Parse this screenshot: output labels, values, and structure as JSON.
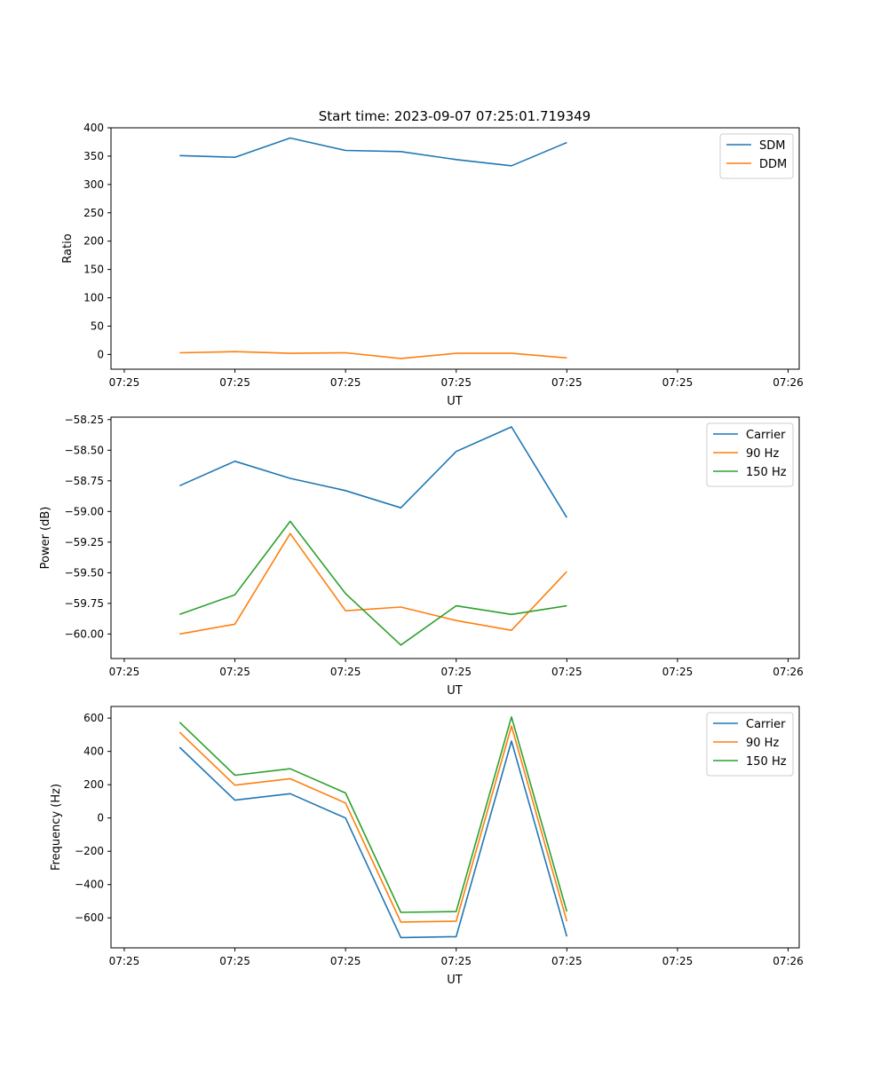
{
  "figure": {
    "title": "Start time: 2023-09-07 07:25:01.719349"
  },
  "chart_data": [
    {
      "type": "line",
      "xlabel": "UT",
      "ylabel": "Ratio",
      "x_ticks": [
        0,
        1,
        2,
        3,
        4,
        5,
        6
      ],
      "x_tick_labels": [
        "07:25",
        "07:25",
        "07:25",
        "07:25",
        "07:25",
        "07:25",
        "07:26"
      ],
      "x": [
        0.5,
        1.0,
        1.5,
        2.0,
        2.5,
        3.0,
        3.5,
        4.0
      ],
      "xlim": [
        -0.12,
        6.1
      ],
      "ylim": [
        -26,
        400
      ],
      "y_ticks": [
        0,
        50,
        100,
        150,
        200,
        250,
        300,
        350,
        400
      ],
      "y_tick_labels": [
        "0",
        "50",
        "100",
        "150",
        "200",
        "250",
        "300",
        "350",
        "400"
      ],
      "legend": "top-right",
      "series": [
        {
          "name": "SDM",
          "color": "#1f77b4",
          "values": [
            351,
            348,
            382,
            360,
            358,
            344,
            333,
            374
          ]
        },
        {
          "name": "DDM",
          "color": "#ff7f0e",
          "values": [
            3,
            5,
            2,
            3,
            -7,
            2,
            2,
            -6
          ]
        }
      ]
    },
    {
      "type": "line",
      "xlabel": "UT",
      "ylabel": "Power (dB)",
      "x_ticks": [
        0,
        1,
        2,
        3,
        4,
        5,
        6
      ],
      "x_tick_labels": [
        "07:25",
        "07:25",
        "07:25",
        "07:25",
        "07:25",
        "07:25",
        "07:26"
      ],
      "x": [
        0.5,
        1.0,
        1.5,
        2.0,
        2.5,
        3.0,
        3.5,
        4.0
      ],
      "xlim": [
        -0.12,
        6.1
      ],
      "ylim": [
        -60.2,
        -58.23
      ],
      "y_ticks": [
        -60.0,
        -59.75,
        -59.5,
        -59.25,
        -59.0,
        -58.75,
        -58.5,
        -58.25
      ],
      "y_tick_labels": [
        "−60.00",
        "−59.75",
        "−59.50",
        "−59.25",
        "−59.00",
        "−58.75",
        "−58.50",
        "−58.25"
      ],
      "legend": "top-right",
      "series": [
        {
          "name": "Carrier",
          "color": "#1f77b4",
          "values": [
            -58.79,
            -58.59,
            -58.73,
            -58.83,
            -58.97,
            -58.51,
            -58.31,
            -59.05
          ]
        },
        {
          "name": "90 Hz",
          "color": "#ff7f0e",
          "values": [
            -60.0,
            -59.92,
            -59.18,
            -59.81,
            -59.78,
            -59.89,
            -59.97,
            -59.49
          ]
        },
        {
          "name": "150 Hz",
          "color": "#2ca02c",
          "values": [
            -59.84,
            -59.68,
            -59.08,
            -59.67,
            -60.09,
            -59.77,
            -59.84,
            -59.77
          ]
        }
      ]
    },
    {
      "type": "line",
      "xlabel": "UT",
      "ylabel": "Frequency (Hz)",
      "x_ticks": [
        0,
        1,
        2,
        3,
        4,
        5,
        6
      ],
      "x_tick_labels": [
        "07:25",
        "07:25",
        "07:25",
        "07:25",
        "07:25",
        "07:25",
        "07:26"
      ],
      "x": [
        0.5,
        1.0,
        1.5,
        2.0,
        2.5,
        3.0,
        3.5,
        4.0
      ],
      "xlim": [
        -0.12,
        6.1
      ],
      "ylim": [
        -780,
        670
      ],
      "y_ticks": [
        -600,
        -400,
        -200,
        0,
        200,
        400,
        600
      ],
      "y_tick_labels": [
        "−600",
        "−400",
        "−200",
        "0",
        "200",
        "400",
        "600"
      ],
      "legend": "top-right",
      "series": [
        {
          "name": "Carrier",
          "color": "#1f77b4",
          "values": [
            425,
            107,
            146,
            0,
            -718,
            -713,
            462,
            -712
          ]
        },
        {
          "name": "90 Hz",
          "color": "#ff7f0e",
          "values": [
            515,
            197,
            236,
            90,
            -625,
            -620,
            552,
            -620
          ]
        },
        {
          "name": "150 Hz",
          "color": "#2ca02c",
          "values": [
            575,
            257,
            296,
            150,
            -567,
            -562,
            607,
            -562
          ]
        }
      ]
    }
  ]
}
